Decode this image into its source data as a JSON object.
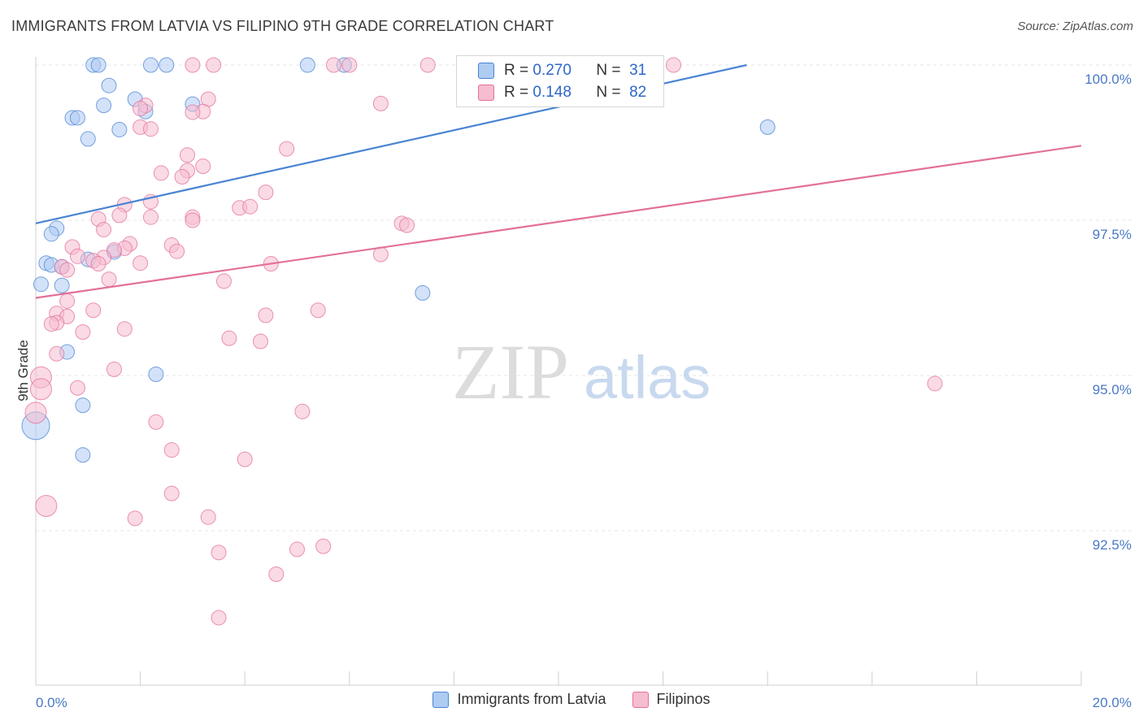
{
  "header": {
    "title": "IMMIGRANTS FROM LATVIA VS FILIPINO 9TH GRADE CORRELATION CHART",
    "source": "Source: ZipAtlas.com"
  },
  "watermark": {
    "part1": "ZIP",
    "part2": "atlas"
  },
  "legend": {
    "r_label": "R =",
    "n_label": "N =",
    "series": [
      {
        "name": "Immigrants from Latvia",
        "r": "0.270",
        "n": "31",
        "color": "#4a84d4",
        "fill": "#aecbf2"
      },
      {
        "name": "Filipinos",
        "r": "0.148",
        "n": "82",
        "color": "#e3709a",
        "fill": "#f6bcd0"
      }
    ]
  },
  "chart_data": {
    "type": "scatter",
    "title": "IMMIGRANTS FROM LATVIA VS FILIPINO 9TH GRADE CORRELATION CHART",
    "ylabel": "9th Grade",
    "xlim": [
      0,
      20
    ],
    "ylim": [
      90.0,
      100.2
    ],
    "x_tick_labels": [
      "0.0%",
      "20.0%"
    ],
    "y_ticks": [
      92.5,
      95.0,
      97.5,
      100.0
    ],
    "y_tick_labels": [
      "92.5%",
      "95.0%",
      "97.5%",
      "100.0%"
    ],
    "grid": true,
    "legend_position": "top-center",
    "series": [
      {
        "name": "Immigrants from Latvia",
        "color": "#4a84d4",
        "fill": "#aecbf2",
        "trend": {
          "x": [
            0,
            13.6
          ],
          "y": [
            97.45,
            100.0
          ]
        },
        "points": [
          [
            1.1,
            100.0
          ],
          [
            1.2,
            100.0
          ],
          [
            2.2,
            100.0
          ],
          [
            2.5,
            100.0
          ],
          [
            5.2,
            100.0
          ],
          [
            5.9,
            100.0
          ],
          [
            1.4,
            99.67
          ],
          [
            1.9,
            99.45
          ],
          [
            1.3,
            99.35
          ],
          [
            3.0,
            99.37
          ],
          [
            2.1,
            99.25
          ],
          [
            0.7,
            99.15
          ],
          [
            0.8,
            99.15
          ],
          [
            1.6,
            98.96
          ],
          [
            1.0,
            98.81
          ],
          [
            14.0,
            99.0
          ],
          [
            0.4,
            97.37
          ],
          [
            0.3,
            97.28
          ],
          [
            1.5,
            96.99
          ],
          [
            1.0,
            96.87
          ],
          [
            0.2,
            96.81
          ],
          [
            0.3,
            96.78
          ],
          [
            0.1,
            96.47
          ],
          [
            0.5,
            96.45
          ],
          [
            7.4,
            96.33
          ],
          [
            0.6,
            95.38
          ],
          [
            2.3,
            95.02
          ],
          [
            0.9,
            94.52
          ],
          [
            0.0,
            94.19
          ],
          [
            0.9,
            93.72
          ],
          [
            0.5,
            96.75
          ]
        ]
      },
      {
        "name": "Filipinos",
        "color": "#e3709a",
        "fill": "#f6bcd0",
        "trend": {
          "x": [
            0,
            20
          ],
          "y": [
            96.25,
            98.7
          ]
        },
        "points": [
          [
            3.0,
            100.0
          ],
          [
            3.4,
            100.0
          ],
          [
            5.7,
            100.0
          ],
          [
            6.0,
            100.0
          ],
          [
            7.5,
            100.0
          ],
          [
            12.2,
            100.0
          ],
          [
            3.3,
            99.45
          ],
          [
            2.1,
            99.35
          ],
          [
            2.0,
            99.3
          ],
          [
            3.2,
            99.25
          ],
          [
            6.6,
            99.38
          ],
          [
            2.0,
            99.0
          ],
          [
            2.2,
            98.97
          ],
          [
            4.8,
            98.65
          ],
          [
            2.9,
            98.55
          ],
          [
            3.2,
            98.37
          ],
          [
            2.9,
            98.3
          ],
          [
            2.4,
            98.26
          ],
          [
            2.8,
            98.2
          ],
          [
            4.4,
            97.95
          ],
          [
            2.2,
            97.8
          ],
          [
            1.7,
            97.75
          ],
          [
            3.9,
            97.7
          ],
          [
            1.6,
            97.58
          ],
          [
            2.2,
            97.55
          ],
          [
            3.0,
            97.55
          ],
          [
            1.2,
            97.52
          ],
          [
            3.0,
            97.5
          ],
          [
            7.0,
            97.45
          ],
          [
            7.1,
            97.42
          ],
          [
            1.3,
            97.35
          ],
          [
            1.8,
            97.12
          ],
          [
            2.6,
            97.1
          ],
          [
            1.7,
            97.05
          ],
          [
            0.7,
            97.07
          ],
          [
            1.5,
            97.02
          ],
          [
            2.7,
            97.0
          ],
          [
            6.6,
            96.95
          ],
          [
            0.8,
            96.92
          ],
          [
            1.3,
            96.9
          ],
          [
            1.1,
            96.85
          ],
          [
            1.2,
            96.8
          ],
          [
            2.0,
            96.81
          ],
          [
            4.5,
            96.8
          ],
          [
            0.5,
            96.75
          ],
          [
            1.4,
            96.55
          ],
          [
            3.6,
            96.52
          ],
          [
            0.6,
            96.2
          ],
          [
            1.1,
            96.05
          ],
          [
            5.4,
            96.05
          ],
          [
            0.4,
            96.0
          ],
          [
            4.4,
            95.97
          ],
          [
            0.6,
            95.95
          ],
          [
            0.4,
            95.85
          ],
          [
            0.3,
            95.83
          ],
          [
            1.7,
            95.75
          ],
          [
            0.9,
            95.7
          ],
          [
            3.7,
            95.6
          ],
          [
            4.3,
            95.55
          ],
          [
            0.4,
            95.35
          ],
          [
            1.5,
            95.1
          ],
          [
            0.1,
            94.97
          ],
          [
            0.8,
            94.8
          ],
          [
            0.1,
            94.78
          ],
          [
            17.2,
            94.87
          ],
          [
            0.0,
            94.4
          ],
          [
            5.1,
            94.42
          ],
          [
            2.3,
            94.25
          ],
          [
            2.6,
            93.8
          ],
          [
            4.0,
            93.65
          ],
          [
            2.6,
            93.1
          ],
          [
            0.2,
            92.9
          ],
          [
            1.9,
            92.7
          ],
          [
            3.3,
            92.72
          ],
          [
            3.5,
            92.15
          ],
          [
            5.0,
            92.2
          ],
          [
            5.5,
            92.25
          ],
          [
            4.6,
            91.8
          ],
          [
            3.5,
            91.1
          ],
          [
            4.1,
            97.72
          ],
          [
            0.6,
            96.7
          ],
          [
            3.0,
            99.24
          ]
        ]
      }
    ]
  }
}
